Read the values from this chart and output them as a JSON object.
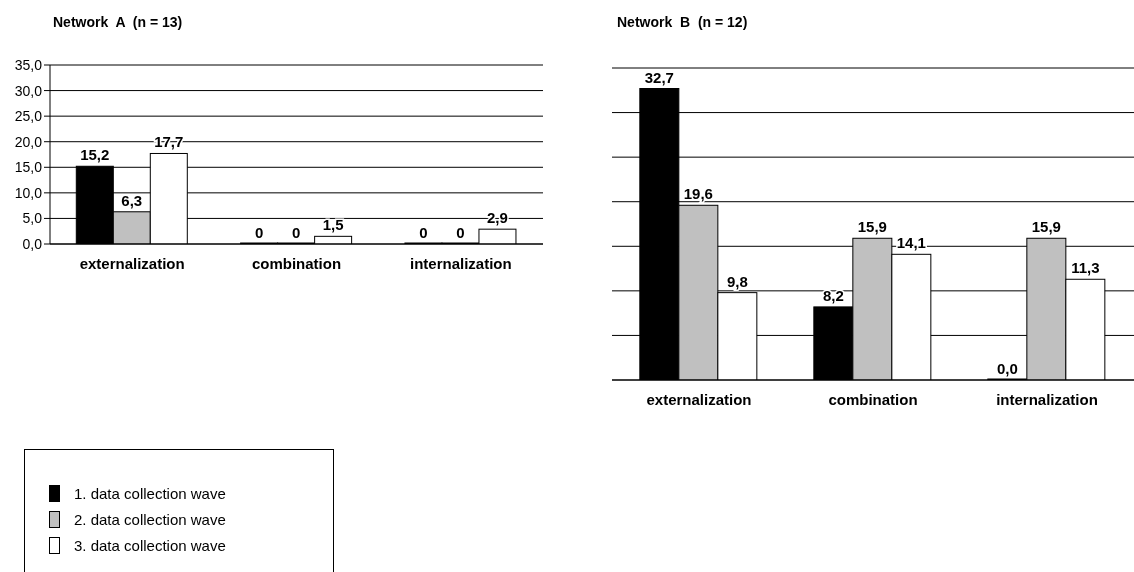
{
  "chart_data": [
    {
      "type": "bar",
      "title": "Network  A  (n = 13)",
      "categories": [
        "externalization",
        "combination",
        "internalization"
      ],
      "ylim": [
        0,
        35
      ],
      "yticks": [
        {
          "value": 0,
          "label": "0,0"
        },
        {
          "value": 5,
          "label": "5,0"
        },
        {
          "value": 10,
          "label": "10,0"
        },
        {
          "value": 15,
          "label": "15,0"
        },
        {
          "value": 20,
          "label": "20,0"
        },
        {
          "value": 25,
          "label": "25,0"
        },
        {
          "value": 30,
          "label": "30,0"
        },
        {
          "value": 35,
          "label": "35,0"
        }
      ],
      "grid": "y",
      "legend": "bottom left",
      "series": [
        {
          "name": "1. data collection wave",
          "color": "#000000",
          "values": [
            15.2,
            0,
            0
          ],
          "value_labels": [
            "15,2",
            "0",
            "0"
          ]
        },
        {
          "name": "2. data collection wave",
          "color": "#c0c0c0",
          "values": [
            6.3,
            0,
            0
          ],
          "value_labels": [
            "6,3",
            "0",
            "0"
          ]
        },
        {
          "name": "3. data collection wave",
          "color": "#ffffff",
          "values": [
            17.7,
            1.5,
            2.9
          ],
          "value_labels": [
            "17,7",
            "1,5",
            "2,9"
          ]
        }
      ]
    },
    {
      "type": "bar",
      "title": "Network  B  (n = 12)",
      "categories": [
        "externalization",
        "combination",
        "internalization"
      ],
      "grid": "y",
      "tick_labels": "x",
      "series": [
        {
          "color": "#000000",
          "values": [
            32.7,
            8.2,
            0
          ],
          "value_labels": [
            "32,7",
            "8,2",
            "0,0"
          ]
        },
        {
          "color": "#c0c0c0",
          "values": [
            19.6,
            15.9,
            15.9
          ],
          "value_labels": [
            "19,6",
            "15,9",
            "15,9"
          ]
        },
        {
          "color": "#ffffff",
          "values": [
            9.8,
            14.1,
            11.3
          ],
          "value_labels": [
            "9,8",
            "14,1",
            "11,3"
          ]
        }
      ]
    }
  ]
}
